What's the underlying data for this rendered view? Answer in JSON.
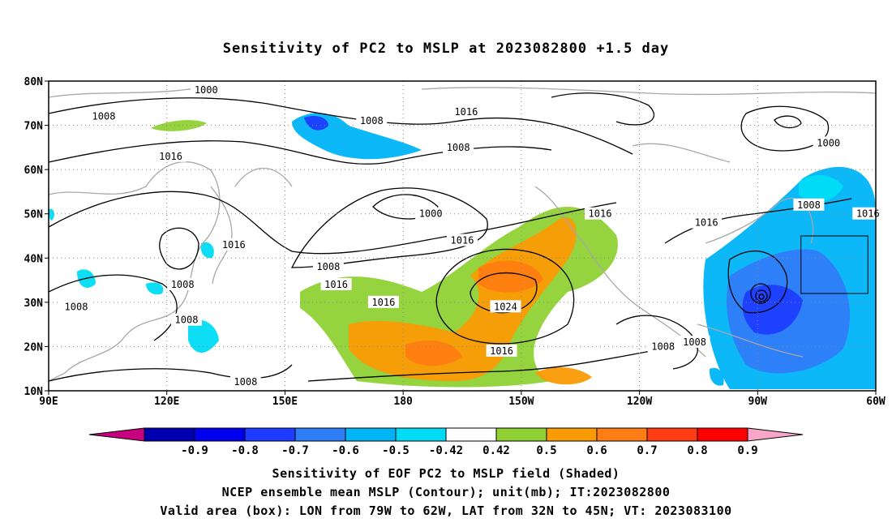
{
  "title": "Sensitivity of PC2 to MSLP at 2023082800 +1.5 day",
  "map": {
    "lat_labels": [
      "80N",
      "70N",
      "60N",
      "50N",
      "40N",
      "30N",
      "20N",
      "10N"
    ],
    "lon_labels": [
      "90E",
      "120E",
      "150E",
      "180",
      "150W",
      "120W",
      "90W",
      "60W"
    ],
    "lon_range": [
      90,
      300
    ],
    "lat_range": [
      10,
      80
    ],
    "valid_box": {
      "lon": [
        281,
        298
      ],
      "lat": [
        32,
        45
      ]
    }
  },
  "contour_labels": [
    {
      "text": "1000",
      "lon": 130,
      "lat": 78
    },
    {
      "text": "1008",
      "lon": 104,
      "lat": 72
    },
    {
      "text": "1008",
      "lon": 172,
      "lat": 71
    },
    {
      "text": "1016",
      "lon": 121,
      "lat": 63
    },
    {
      "text": "1016",
      "lon": 196,
      "lat": 73
    },
    {
      "text": "1008",
      "lon": 194,
      "lat": 65
    },
    {
      "text": "1000",
      "lon": 288,
      "lat": 66
    },
    {
      "text": "1000",
      "lon": 187,
      "lat": 50
    },
    {
      "text": "1016",
      "lon": 230,
      "lat": 50
    },
    {
      "text": "1008",
      "lon": 283,
      "lat": 52
    },
    {
      "text": "1016",
      "lon": 298,
      "lat": 50
    },
    {
      "text": "1016",
      "lon": 257,
      "lat": 48
    },
    {
      "text": "1016",
      "lon": 195,
      "lat": 44
    },
    {
      "text": "1016",
      "lon": 137,
      "lat": 43
    },
    {
      "text": "1008",
      "lon": 161,
      "lat": 38
    },
    {
      "text": "1016",
      "lon": 163,
      "lat": 34
    },
    {
      "text": "1008",
      "lon": 124,
      "lat": 34
    },
    {
      "text": "1008",
      "lon": 97,
      "lat": 29
    },
    {
      "text": "1016",
      "lon": 175,
      "lat": 30
    },
    {
      "text": "1024",
      "lon": 206,
      "lat": 29
    },
    {
      "text": "1008",
      "lon": 125,
      "lat": 26
    },
    {
      "text": "1016",
      "lon": 205,
      "lat": 19
    },
    {
      "text": "1008",
      "lon": 246,
      "lat": 20
    },
    {
      "text": "1008",
      "lon": 254,
      "lat": 21
    },
    {
      "text": "1008",
      "lon": 140,
      "lat": 12
    }
  ],
  "colorbar": {
    "tick_labels": [
      "-0.9",
      "-0.8",
      "-0.7",
      "-0.6",
      "-0.5",
      "-0.42",
      "0.42",
      "0.5",
      "0.6",
      "0.7",
      "0.8",
      "0.9"
    ],
    "colors": [
      "#0000b0",
      "#0000ee",
      "#1e3cff",
      "#2f7cf7",
      "#00b4f8",
      "#00dcf5",
      "#ffffff",
      "#8fd135",
      "#fa9b05",
      "#ff7d12",
      "#ff3c14",
      "#ff0000"
    ],
    "low_end_color": "#c8007f",
    "high_end_color": "#f7a6c8"
  },
  "captions": [
    "Sensitivity of EOF PC2 to MSLP field (Shaded)",
    "NCEP ensemble mean MSLP (Contour); unit(mb); IT:2023082800",
    "Valid area (box): LON from 79W to 62W, LAT from 32N to 45N; VT: 2023083100"
  ]
}
